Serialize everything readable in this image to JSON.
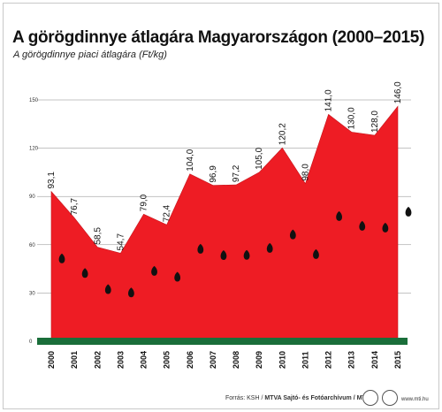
{
  "title": "A görögdinnye átlagára Magyarországon (2000–2015)",
  "subtitle": "A görögdinnye piaci átlagára (Ft/kg)",
  "footer": {
    "source_label": "Forrás: KSH / ",
    "source_agency": "MTVA Sajtó- és Fotóarchívum / MTI",
    "site": "www.mti.hu"
  },
  "colors": {
    "area": "#ee1c24",
    "baseline": "#1a6e3a",
    "seeds": "#111111",
    "grid": "#888888"
  },
  "chart_data": {
    "type": "area",
    "x": [
      "2000",
      "2001",
      "2002",
      "2003",
      "2004",
      "2005",
      "2006",
      "2007",
      "2008",
      "2009",
      "2010",
      "2011",
      "2012",
      "2013",
      "2014",
      "2015"
    ],
    "series": [
      {
        "values": [
          93.1,
          76.7,
          58.5,
          54.7,
          79.0,
          72.4,
          104.0,
          96.9,
          97.2,
          105.0,
          120.2,
          98.0,
          141.0,
          130.0,
          128.0,
          146.0
        ],
        "labels": [
          "93,1",
          "76,7",
          "58,5",
          "54,7",
          "79,0",
          "72,4",
          "104,0",
          "96,9",
          "97,2",
          "105,0",
          "120,2",
          "98,0",
          "141,0",
          "130,0",
          "128,0",
          "146,0"
        ]
      }
    ],
    "yticks": [
      "0",
      "30",
      "60",
      "90",
      "120",
      "150"
    ],
    "ylim": [
      0,
      150
    ],
    "grid": true
  }
}
